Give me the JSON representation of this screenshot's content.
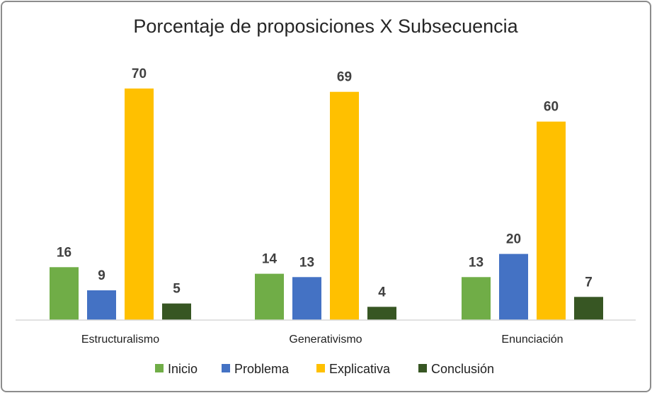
{
  "chart_data": {
    "type": "bar",
    "title": "Porcentaje de proposiciones X Subsecuencia",
    "categories": [
      "Estructuralismo",
      "Generativismo",
      "Enunciación"
    ],
    "series": [
      {
        "name": "Inicio",
        "color": "#70ad47",
        "values": [
          16,
          14,
          13
        ]
      },
      {
        "name": "Problema",
        "color": "#4472c4",
        "values": [
          9,
          13,
          20
        ]
      },
      {
        "name": "Explicativa",
        "color": "#ffc000",
        "values": [
          70,
          69,
          60
        ]
      },
      {
        "name": "Conclusión",
        "color": "#375623",
        "values": [
          5,
          4,
          7
        ]
      }
    ],
    "ylim": [
      0,
      70
    ],
    "grid": false,
    "legend_position": "bottom"
  }
}
